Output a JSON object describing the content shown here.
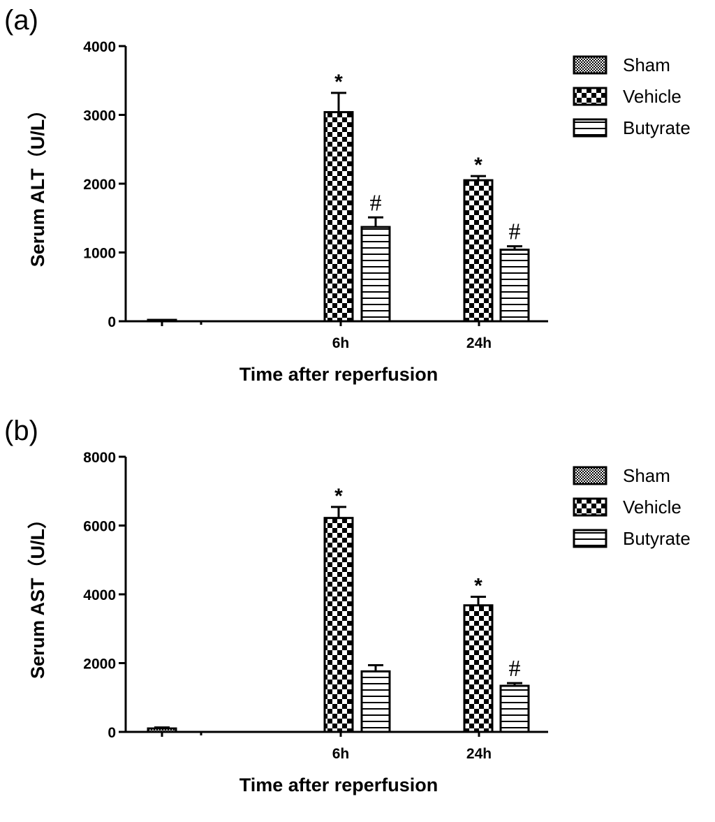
{
  "chart_data": [
    {
      "type": "bar",
      "panel_label": "(a)",
      "title": "",
      "xlabel": "Time after reperfusion",
      "ylabel": "Serum ALT（U/L）",
      "ylim": [
        0,
        4000
      ],
      "yticks": [
        "0",
        "1000",
        "2000",
        "3000",
        "4000"
      ],
      "categories": [
        "",
        "6h",
        "24h"
      ],
      "series": [
        {
          "name": "Sham",
          "pattern": "pat-fine",
          "values": [
            20,
            null,
            null
          ],
          "errors": [
            0,
            null,
            null
          ],
          "sig": [
            "",
            null,
            null
          ]
        },
        {
          "name": "Vehicle",
          "pattern": "pat-check",
          "values": [
            null,
            3040,
            2050
          ],
          "errors": [
            null,
            280,
            60
          ],
          "sig": [
            null,
            "*",
            "*"
          ]
        },
        {
          "name": "Butyrate",
          "pattern": "pat-hline",
          "values": [
            null,
            1370,
            1040
          ],
          "errors": [
            null,
            140,
            50
          ],
          "sig": [
            null,
            "#",
            "#"
          ]
        }
      ],
      "legend_position": "top-right"
    },
    {
      "type": "bar",
      "panel_label": "(b)",
      "title": "",
      "xlabel": "Time after reperfusion",
      "ylabel": "Serum AST（U/L）",
      "ylim": [
        0,
        8000
      ],
      "yticks": [
        "0",
        "2000",
        "4000",
        "6000",
        "8000"
      ],
      "categories": [
        "",
        "6h",
        "24h"
      ],
      "series": [
        {
          "name": "Sham",
          "pattern": "pat-fine",
          "values": [
            100,
            null,
            null
          ],
          "errors": [
            30,
            null,
            null
          ],
          "sig": [
            "",
            null,
            null
          ]
        },
        {
          "name": "Vehicle",
          "pattern": "pat-check",
          "values": [
            null,
            6220,
            3680
          ],
          "errors": [
            null,
            320,
            250
          ],
          "sig": [
            null,
            "*",
            "*"
          ]
        },
        {
          "name": "Butyrate",
          "pattern": "pat-hline",
          "values": [
            null,
            1760,
            1340
          ],
          "errors": [
            null,
            180,
            80
          ],
          "sig": [
            null,
            "",
            "#"
          ]
        }
      ],
      "legend_position": "top-right"
    }
  ]
}
